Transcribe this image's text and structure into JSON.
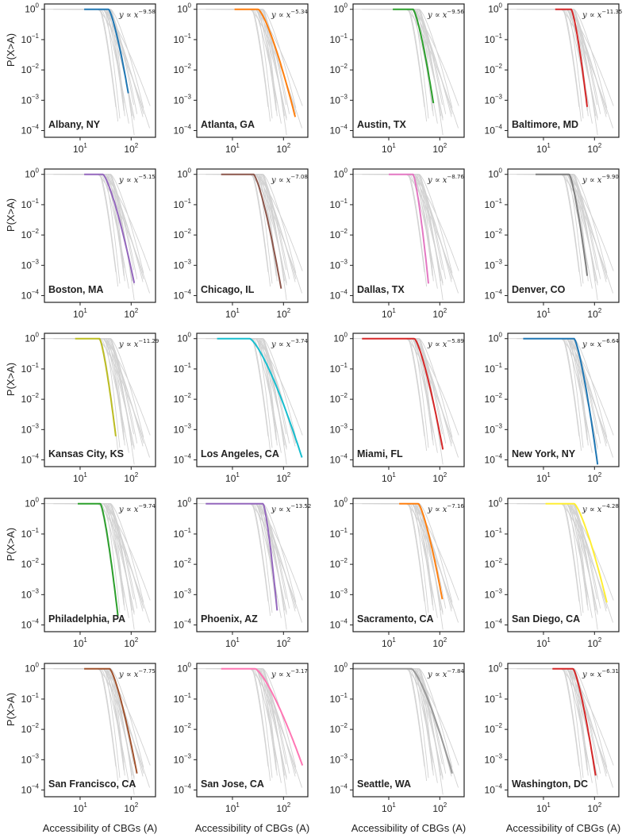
{
  "chart_data": {
    "type": "line",
    "title": "",
    "xlabel": "Accessibility of CBGs (A)",
    "ylabel": "P(X>A)",
    "xscale": "log",
    "yscale": "log",
    "xlim": [
      2,
      300
    ],
    "ylim": [
      6e-05,
      1.5
    ],
    "x_tick_labels": [
      "10",
      "1",
      "10",
      "2"
    ],
    "y_tick_labels": [
      {
        "base": "10",
        "exp": "0"
      },
      {
        "base": "10",
        "exp": "−1"
      },
      {
        "base": "10",
        "exp": "−2"
      },
      {
        "base": "10",
        "exp": "−3"
      },
      {
        "base": "10",
        "exp": "−4"
      }
    ],
    "fit_prefix": "y ∝ x",
    "panels": [
      {
        "city": "Albany, NY",
        "color": "#1f77b4",
        "exponent": "−9.58",
        "xmin": 12,
        "knee": 36,
        "xmax": 88,
        "ymin": 0.0017
      },
      {
        "city": "Atlanta, GA",
        "color": "#ff7f0e",
        "exponent": "−5.34",
        "xmin": 11,
        "knee": 32,
        "xmax": 170,
        "ymin": 0.00028
      },
      {
        "city": "Austin, TX",
        "color": "#2ca02c",
        "exponent": "−9.56",
        "xmin": 12,
        "knee": 30,
        "xmax": 75,
        "ymin": 0.0008
      },
      {
        "city": "Baltimore, MD",
        "color": "#d62728",
        "exponent": "−11.35",
        "xmin": 17,
        "knee": 35,
        "xmax": 72,
        "ymin": 0.0006
      },
      {
        "city": "Boston, MA",
        "color": "#9467bd",
        "exponent": "−5.15",
        "xmin": 12,
        "knee": 28,
        "xmax": 115,
        "ymin": 0.00026
      },
      {
        "city": "Chicago, IL",
        "color": "#8c564b",
        "exponent": "−7.08",
        "xmin": 6,
        "knee": 26,
        "xmax": 90,
        "ymin": 0.00017
      },
      {
        "city": "Dallas, TX",
        "color": "#e377c2",
        "exponent": "−8.76",
        "xmin": 10,
        "knee": 30,
        "xmax": 60,
        "ymin": 0.00025
      },
      {
        "city": "Denver, CO",
        "color": "#7f7f7f",
        "exponent": "−9.90",
        "xmin": 7,
        "knee": 32,
        "xmax": 72,
        "ymin": 0.00045
      },
      {
        "city": "Kansas City, KS",
        "color": "#bcbd22",
        "exponent": "−11.29",
        "xmin": 8,
        "knee": 24,
        "xmax": 50,
        "ymin": 0.0006
      },
      {
        "city": "Los Angeles, CA",
        "color": "#17becf",
        "exponent": "−3.74",
        "xmin": 5,
        "knee": 22,
        "xmax": 230,
        "ymin": 0.00012
      },
      {
        "city": "Miami, FL",
        "color": "#d62728",
        "exponent": "−5.89",
        "xmin": 3,
        "knee": 32,
        "xmax": 115,
        "ymin": 0.00022
      },
      {
        "city": "New York, NY",
        "color": "#1f77b4",
        "exponent": "−6.64",
        "xmin": 4,
        "knee": 40,
        "xmax": 115,
        "ymin": 7e-05
      },
      {
        "city": "Philadelphia, PA",
        "color": "#2ca02c",
        "exponent": "−9.74",
        "xmin": 9,
        "knee": 25,
        "xmax": 55,
        "ymin": 0.0002
      },
      {
        "city": "Phoenix, AZ",
        "color": "#9467bd",
        "exponent": "−13.52",
        "xmin": 3,
        "knee": 40,
        "xmax": 75,
        "ymin": 0.0003
      },
      {
        "city": "Sacramento, CA",
        "color": "#ff7f0e",
        "exponent": "−7.16",
        "xmin": 16,
        "knee": 38,
        "xmax": 112,
        "ymin": 0.0007
      },
      {
        "city": "San Diego, CA",
        "color": "#ffee33",
        "exponent": "−4.28",
        "xmin": 11,
        "knee": 40,
        "xmax": 175,
        "ymin": 0.00055
      },
      {
        "city": "San Francisco, CA",
        "color": "#a0522d",
        "exponent": "−7.75",
        "xmin": 12,
        "knee": 38,
        "xmax": 130,
        "ymin": 0.00035
      },
      {
        "city": "San Jose, CA",
        "color": "#ff77b4",
        "exponent": "−3.17",
        "xmin": 6,
        "knee": 28,
        "xmax": 235,
        "ymin": 0.00065
      },
      {
        "city": "Seattle, WA",
        "color": "#999999",
        "exponent": "−7.84",
        "xmin": 2,
        "knee": 28,
        "xmax": 175,
        "ymin": 0.00035
      },
      {
        "city": "Washington, DC",
        "color": "#d62728",
        "exponent": "−6.31",
        "xmin": 15,
        "knee": 38,
        "xmax": 105,
        "ymin": 0.0003
      }
    ]
  }
}
